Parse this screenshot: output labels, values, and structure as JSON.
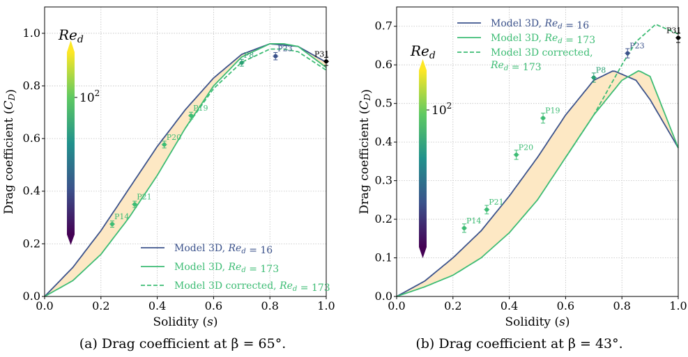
{
  "colors": {
    "low_re": "#3b528b",
    "high_re": "#3dbc74",
    "band_fill": "#fde8c4",
    "grid": "#bfbfbf"
  },
  "colorbar": {
    "title": "Re_d",
    "tick_label": "10^2"
  },
  "chart_data": [
    {
      "type": "line",
      "caption": "(a) Drag coefficient at β = 65°.",
      "xlabel": "Solidity (s)",
      "ylabel": "Drag coefficient (C_D)",
      "xlim": [
        0,
        1
      ],
      "ylim": [
        0,
        1.1
      ],
      "xticks": [
        0.0,
        0.2,
        0.4,
        0.6,
        0.8,
        1.0
      ],
      "yticks": [
        0.0,
        0.2,
        0.4,
        0.6,
        0.8,
        1.0
      ],
      "grid": true,
      "legend_position": "lower-right",
      "series": [
        {
          "name": "Model 3D, Re_d = 16",
          "style": "solid",
          "color": "#3b528b",
          "x": [
            0,
            0.1,
            0.2,
            0.3,
            0.4,
            0.5,
            0.6,
            0.7,
            0.8,
            0.9,
            1.0
          ],
          "y": [
            0,
            0.11,
            0.25,
            0.41,
            0.57,
            0.71,
            0.83,
            0.92,
            0.96,
            0.95,
            0.89
          ]
        },
        {
          "name": "Model 3D, Re_d = 173",
          "style": "solid",
          "color": "#3dbc74",
          "x": [
            0,
            0.1,
            0.2,
            0.3,
            0.4,
            0.5,
            0.6,
            0.7,
            0.8,
            0.85,
            0.9,
            1.0
          ],
          "y": [
            0,
            0.06,
            0.16,
            0.3,
            0.46,
            0.64,
            0.8,
            0.91,
            0.96,
            0.96,
            0.95,
            0.87
          ]
        },
        {
          "name": "Model 3D corrected, Re_d = 173",
          "style": "dashed",
          "color": "#3dbc74",
          "x": [
            0.5,
            0.6,
            0.7,
            0.8,
            0.85,
            0.9,
            1.0
          ],
          "y": [
            0.64,
            0.79,
            0.89,
            0.94,
            0.94,
            0.93,
            0.86
          ]
        }
      ],
      "points": [
        {
          "label": "P14",
          "x": 0.24,
          "y": 0.275,
          "err": 0.012,
          "color": "#3dbc74"
        },
        {
          "label": "P21",
          "x": 0.32,
          "y": 0.35,
          "err": 0.012,
          "color": "#3dbc74"
        },
        {
          "label": "P20",
          "x": 0.425,
          "y": 0.577,
          "err": 0.013,
          "color": "#3dbc74"
        },
        {
          "label": "P19",
          "x": 0.52,
          "y": 0.687,
          "err": 0.013,
          "color": "#3dbc74"
        },
        {
          "label": "P8",
          "x": 0.7,
          "y": 0.888,
          "err": 0.013,
          "color": "#2aa073"
        },
        {
          "label": "P23",
          "x": 0.82,
          "y": 0.913,
          "err": 0.014,
          "color": "#3b528b"
        },
        {
          "label": "P31",
          "x": 1.0,
          "y": 0.893,
          "err": 0.015,
          "color": "#000000"
        }
      ],
      "legend": [
        {
          "text": "Model 3D, Re_d = 16",
          "style": "solid",
          "color": "#3b528b"
        },
        {
          "text": "Model 3D, Re_d = 173",
          "style": "solid",
          "color": "#3dbc74"
        },
        {
          "text": "Model 3D corrected, Re_d = 173",
          "style": "dashed",
          "color": "#3dbc74"
        }
      ]
    },
    {
      "type": "line",
      "caption": "(b) Drag coefficient at β = 43°.",
      "xlabel": "Solidity (s)",
      "ylabel": "Drag coefficient (C_D)",
      "xlim": [
        0,
        1
      ],
      "ylim": [
        0,
        0.75
      ],
      "xticks": [
        0.0,
        0.2,
        0.4,
        0.6,
        0.8,
        1.0
      ],
      "yticks": [
        0.0,
        0.1,
        0.2,
        0.3,
        0.4,
        0.5,
        0.6,
        0.7
      ],
      "grid": true,
      "legend_position": "upper-left",
      "series": [
        {
          "name": "Model 3D, Re_d = 16",
          "style": "solid",
          "color": "#3b528b",
          "x": [
            0,
            0.1,
            0.2,
            0.3,
            0.4,
            0.5,
            0.6,
            0.7,
            0.77,
            0.85,
            0.9,
            1.0
          ],
          "y": [
            0,
            0.04,
            0.1,
            0.17,
            0.26,
            0.36,
            0.47,
            0.56,
            0.585,
            0.56,
            0.51,
            0.385
          ]
        },
        {
          "name": "Model 3D, Re_d = 173",
          "style": "solid",
          "color": "#3dbc74",
          "x": [
            0,
            0.1,
            0.2,
            0.3,
            0.4,
            0.5,
            0.6,
            0.7,
            0.8,
            0.86,
            0.9,
            1.0
          ],
          "y": [
            0,
            0.025,
            0.055,
            0.1,
            0.165,
            0.25,
            0.36,
            0.47,
            0.56,
            0.585,
            0.57,
            0.385
          ]
        },
        {
          "name": "Model 3D corrected, Re_d = 173",
          "style": "dashed",
          "color": "#3dbc74",
          "x": [
            0.6,
            0.7,
            0.8,
            0.85,
            0.92,
            1.0
          ],
          "y": [
            0.36,
            0.47,
            0.6,
            0.66,
            0.705,
            0.68
          ]
        }
      ],
      "points": [
        {
          "label": "P14",
          "x": 0.24,
          "y": 0.177,
          "err": 0.011,
          "color": "#3dbc74"
        },
        {
          "label": "P21",
          "x": 0.32,
          "y": 0.225,
          "err": 0.011,
          "color": "#3dbc74"
        },
        {
          "label": "P20",
          "x": 0.425,
          "y": 0.367,
          "err": 0.012,
          "color": "#3dbc74"
        },
        {
          "label": "P19",
          "x": 0.52,
          "y": 0.462,
          "err": 0.013,
          "color": "#3dbc74"
        },
        {
          "label": "P8",
          "x": 0.7,
          "y": 0.567,
          "err": 0.012,
          "color": "#2aa073"
        },
        {
          "label": "P23",
          "x": 0.82,
          "y": 0.63,
          "err": 0.012,
          "color": "#3b528b"
        },
        {
          "label": "P31",
          "x": 1.0,
          "y": 0.67,
          "err": 0.012,
          "color": "#000000"
        }
      ],
      "legend": [
        {
          "text": "Model 3D, Re_d = 16",
          "style": "solid",
          "color": "#3b528b"
        },
        {
          "text": "Model 3D, Re_d = 173",
          "style": "solid",
          "color": "#3dbc74"
        },
        {
          "text": "Model 3D corrected, Re_d = 173",
          "style": "dashed",
          "color": "#3dbc74"
        }
      ]
    }
  ]
}
